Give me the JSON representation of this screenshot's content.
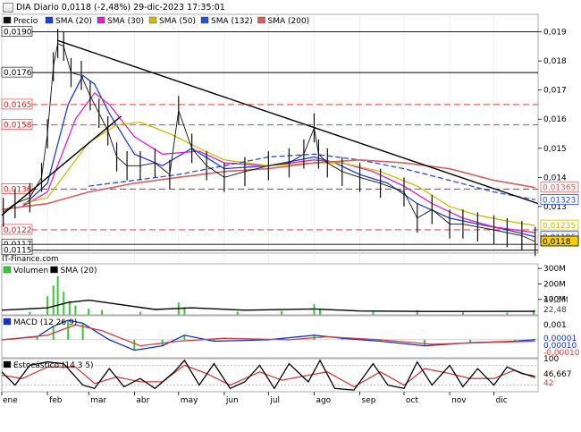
{
  "header": {
    "title": "DIA Diario 0,0118 (-2,48%) 29-dic-2023 17:35:01",
    "source": "IT-Finance.com"
  },
  "colors": {
    "price": "#111111",
    "sma20": "#1f3fd6",
    "sma30": "#e020c8",
    "sma50": "#c8c000",
    "sma132": "#2a4fd8",
    "sma200": "#d86060",
    "level_line": "#e02020",
    "trend_line": "#000000",
    "volume": "#38c838",
    "macd": "#1030d0",
    "macd_signal": "#d04040",
    "stoch_k": "#000000",
    "stoch_d": "#d04040"
  },
  "chart_data": [
    {
      "type": "line",
      "panel": "price",
      "legend": [
        "Precio",
        "SMA (20)",
        "SMA (30)",
        "SMA (50)",
        "SMA (132)",
        "SMA (200)"
      ],
      "x_months": [
        "ene",
        "feb",
        "mar",
        "abr",
        "may",
        "jun",
        "jul",
        "ago",
        "sep",
        "oct",
        "nov",
        "dic"
      ],
      "y_ticks": [
        "0,019",
        "0,018",
        "0,017",
        "0,016",
        "0,015",
        "0,014",
        "0,013"
      ],
      "ylim": [
        0.0114,
        0.0196
      ],
      "horizontal_levels": [
        {
          "value": 0.019,
          "label": "0,0190",
          "style": "solid"
        },
        {
          "value": 0.0176,
          "label": "0,0176",
          "style": "solid"
        },
        {
          "value": 0.0165,
          "label": "0,0165",
          "style": "dashed"
        },
        {
          "value": 0.0158,
          "label": "0,0158",
          "style": "dashed"
        },
        {
          "value": 0.0136,
          "label": "0,0136",
          "style": "dashed"
        },
        {
          "value": 0.0122,
          "label": "0,0122",
          "style": "dashed"
        },
        {
          "value": 0.0117,
          "label": "0,0117",
          "style": "solid"
        },
        {
          "value": 0.0115,
          "label": "0,0115",
          "style": "solid"
        }
      ],
      "right_badges": [
        {
          "label": "0,01365",
          "value": 0.01365,
          "series": "SMA (200)"
        },
        {
          "label": "0,01323",
          "value": 0.01323,
          "series": "SMA (132)"
        },
        {
          "label": "0,01235",
          "value": 0.01235,
          "series": "SMA (50)"
        },
        {
          "label": "0,01196",
          "value": 0.01196,
          "series": "SMA (20)"
        },
        {
          "label": "0,0118",
          "value": 0.0118,
          "series": "Precio"
        }
      ],
      "trendlines": [
        {
          "from": [
            "2023-01-01",
            0.0127
          ],
          "to": [
            "2023-03-23",
            0.0161
          ]
        },
        {
          "from": [
            "2023-02-08",
            0.0187
          ],
          "to": [
            "2023-12-31",
            0.0131
          ]
        }
      ],
      "series": [
        {
          "name": "Precio",
          "key": "price",
          "x": [
            "2023-01-02",
            "2023-01-10",
            "2023-01-20",
            "2023-01-28",
            "2023-02-01",
            "2023-02-05",
            "2023-02-08",
            "2023-02-12",
            "2023-02-17",
            "2023-02-24",
            "2023-03-02",
            "2023-03-08",
            "2023-03-14",
            "2023-03-20",
            "2023-03-27",
            "2023-04-05",
            "2023-04-15",
            "2023-04-25",
            "2023-05-01",
            "2023-05-10",
            "2023-05-20",
            "2023-06-01",
            "2023-06-15",
            "2023-07-01",
            "2023-07-15",
            "2023-07-25",
            "2023-08-01",
            "2023-08-04",
            "2023-08-10",
            "2023-08-20",
            "2023-09-01",
            "2023-09-15",
            "2023-10-01",
            "2023-10-10",
            "2023-10-20",
            "2023-11-01",
            "2023-11-10",
            "2023-11-20",
            "2023-12-01",
            "2023-12-10",
            "2023-12-20",
            "2023-12-29"
          ],
          "values": [
            0.0128,
            0.0131,
            0.0133,
            0.014,
            0.0155,
            0.0178,
            0.0186,
            0.0185,
            0.0176,
            0.0175,
            0.0168,
            0.0162,
            0.0156,
            0.0147,
            0.0144,
            0.0144,
            0.0145,
            0.0141,
            0.0163,
            0.015,
            0.0144,
            0.014,
            0.0142,
            0.0144,
            0.0145,
            0.0148,
            0.0157,
            0.0148,
            0.0145,
            0.0142,
            0.014,
            0.0138,
            0.0135,
            0.0126,
            0.0129,
            0.0124,
            0.0124,
            0.0123,
            0.0122,
            0.0121,
            0.012,
            0.0118
          ]
        },
        {
          "name": "SMA (20)",
          "key": "sma20",
          "x": [
            "2023-01-15",
            "2023-02-01",
            "2023-02-15",
            "2023-02-25",
            "2023-03-05",
            "2023-03-15",
            "2023-04-01",
            "2023-04-20",
            "2023-05-10",
            "2023-06-01",
            "2023-07-01",
            "2023-08-01",
            "2023-08-15",
            "2023-09-01",
            "2023-09-20",
            "2023-10-10",
            "2023-11-01",
            "2023-11-20",
            "2023-12-10",
            "2023-12-29"
          ],
          "values": [
            0.013,
            0.0138,
            0.0165,
            0.0175,
            0.0172,
            0.0162,
            0.0148,
            0.0144,
            0.015,
            0.0143,
            0.0144,
            0.0147,
            0.0145,
            0.0141,
            0.0138,
            0.0131,
            0.0126,
            0.0124,
            0.0122,
            0.01196
          ]
        },
        {
          "name": "SMA (30)",
          "key": "sma30",
          "x": [
            "2023-01-15",
            "2023-02-01",
            "2023-02-20",
            "2023-03-05",
            "2023-03-15",
            "2023-04-01",
            "2023-04-20",
            "2023-05-15",
            "2023-06-01",
            "2023-07-01",
            "2023-08-01",
            "2023-08-20",
            "2023-09-10",
            "2023-10-01",
            "2023-10-20",
            "2023-11-10",
            "2023-12-01",
            "2023-12-29"
          ],
          "values": [
            0.013,
            0.0135,
            0.016,
            0.0169,
            0.0165,
            0.0154,
            0.0148,
            0.0149,
            0.0145,
            0.0144,
            0.0146,
            0.0145,
            0.0142,
            0.0137,
            0.0131,
            0.0126,
            0.0123,
            0.0121
          ]
        },
        {
          "name": "SMA (50)",
          "key": "sma50",
          "x": [
            "2023-01-15",
            "2023-02-01",
            "2023-03-01",
            "2023-03-20",
            "2023-04-05",
            "2023-04-25",
            "2023-05-15",
            "2023-06-01",
            "2023-07-01",
            "2023-08-01",
            "2023-08-20",
            "2023-09-15",
            "2023-10-10",
            "2023-11-01",
            "2023-11-20",
            "2023-12-10",
            "2023-12-29"
          ],
          "values": [
            0.0131,
            0.0133,
            0.0152,
            0.0158,
            0.0159,
            0.0155,
            0.015,
            0.0146,
            0.0144,
            0.0145,
            0.0145,
            0.0142,
            0.0137,
            0.013,
            0.0127,
            0.0125,
            0.01235
          ]
        },
        {
          "name": "SMA (132)",
          "key": "sma132",
          "x": [
            "2023-03-01",
            "2023-04-01",
            "2023-05-01",
            "2023-06-01",
            "2023-07-01",
            "2023-08-01",
            "2023-09-01",
            "2023-10-01",
            "2023-11-01",
            "2023-12-01",
            "2023-12-29"
          ],
          "values": [
            0.0137,
            0.0139,
            0.0141,
            0.0144,
            0.0147,
            0.0148,
            0.0146,
            0.0143,
            0.0139,
            0.0135,
            0.01323
          ]
        },
        {
          "name": "SMA (200)",
          "key": "sma200",
          "x": [
            "2023-01-01",
            "2023-02-01",
            "2023-03-01",
            "2023-04-01",
            "2023-05-01",
            "2023-06-01",
            "2023-07-01",
            "2023-08-01",
            "2023-09-01",
            "2023-10-01",
            "2023-11-01",
            "2023-12-01",
            "2023-12-29"
          ],
          "values": [
            0.0129,
            0.0131,
            0.0135,
            0.0138,
            0.014,
            0.0142,
            0.0143,
            0.0145,
            0.0146,
            0.0145,
            0.0143,
            0.0139,
            0.01365
          ]
        }
      ]
    },
    {
      "type": "bar",
      "panel": "volume",
      "legend": [
        "Volumen",
        "SMA (20)"
      ],
      "y_ticks": [
        "300M",
        "200M",
        "100M"
      ],
      "ylim": [
        0,
        330
      ],
      "right_badges": [
        "47,5M",
        "22,48"
      ],
      "series": [
        {
          "name": "Volumen",
          "x": [
            "2023-01-20",
            "2023-02-01",
            "2023-02-05",
            "2023-02-08",
            "2023-02-12",
            "2023-02-16",
            "2023-02-20",
            "2023-03-01",
            "2023-03-10",
            "2023-04-05",
            "2023-05-01",
            "2023-05-05",
            "2023-06-10",
            "2023-07-10",
            "2023-08-01",
            "2023-08-05",
            "2023-09-10",
            "2023-10-10",
            "2023-11-10",
            "2023-12-10",
            "2023-12-28"
          ],
          "values": [
            20,
            120,
            190,
            250,
            150,
            90,
            60,
            40,
            30,
            20,
            80,
            50,
            20,
            25,
            70,
            40,
            20,
            30,
            20,
            15,
            30
          ]
        },
        {
          "name": "SMA (20)",
          "x": [
            "2023-01-01",
            "2023-02-01",
            "2023-02-15",
            "2023-03-01",
            "2023-03-20",
            "2023-04-15",
            "2023-05-10",
            "2023-06-15",
            "2023-08-01",
            "2023-09-01",
            "2023-10-15",
            "2023-12-29"
          ],
          "values": [
            30,
            45,
            80,
            95,
            70,
            35,
            45,
            30,
            38,
            25,
            22,
            22.48
          ]
        }
      ]
    },
    {
      "type": "line",
      "panel": "macd",
      "legend": [
        "MACD (12 26 9)"
      ],
      "y_ticks": [
        "0,001"
      ],
      "ylim": [
        -0.0012,
        0.0016
      ],
      "right_badges": [
        "0,00001",
        "0,00010",
        "-0,00010"
      ],
      "series": [
        {
          "name": "MACD",
          "x": [
            "2023-01-01",
            "2023-01-25",
            "2023-02-05",
            "2023-02-15",
            "2023-02-25",
            "2023-03-15",
            "2023-04-01",
            "2023-04-20",
            "2023-05-05",
            "2023-05-25",
            "2023-07-01",
            "2023-08-01",
            "2023-08-20",
            "2023-09-15",
            "2023-10-15",
            "2023-11-15",
            "2023-12-15",
            "2023-12-29"
          ],
          "values": [
            0.0,
            0.0002,
            0.0009,
            0.0013,
            0.0011,
            0.0,
            -0.0007,
            -0.0004,
            0.0003,
            -0.0001,
            0.0,
            0.0003,
            0.0001,
            -0.0001,
            -0.0004,
            -0.0002,
            -0.0001,
            1e-05
          ]
        },
        {
          "name": "Señal",
          "x": [
            "2023-01-01",
            "2023-02-01",
            "2023-02-20",
            "2023-03-10",
            "2023-04-05",
            "2023-05-01",
            "2023-06-01",
            "2023-07-15",
            "2023-08-10",
            "2023-09-15",
            "2023-10-20",
            "2023-11-20",
            "2023-12-29"
          ],
          "values": [
            0.0,
            0.0003,
            0.001,
            0.0006,
            -0.0004,
            -0.0001,
            0.0001,
            0.0,
            0.0002,
            0.0,
            -0.0003,
            -0.0002,
            -0.0001
          ]
        }
      ]
    },
    {
      "type": "line",
      "panel": "stochastic",
      "legend": [
        "Estocástico (14 3 5)"
      ],
      "y_ticks": [
        "100"
      ],
      "ylim": [
        0,
        100
      ],
      "right_badges": [
        "46,667",
        "42"
      ],
      "series": [
        {
          "name": "%K",
          "x": [
            "2023-01-01",
            "2023-01-10",
            "2023-01-20",
            "2023-02-01",
            "2023-02-12",
            "2023-02-25",
            "2023-03-05",
            "2023-03-15",
            "2023-03-25",
            "2023-04-05",
            "2023-04-15",
            "2023-04-28",
            "2023-05-05",
            "2023-05-15",
            "2023-05-25",
            "2023-06-05",
            "2023-06-15",
            "2023-06-25",
            "2023-07-05",
            "2023-07-15",
            "2023-07-28",
            "2023-08-05",
            "2023-08-15",
            "2023-08-28",
            "2023-09-10",
            "2023-09-20",
            "2023-10-01",
            "2023-10-10",
            "2023-10-20",
            "2023-11-01",
            "2023-11-10",
            "2023-11-20",
            "2023-12-01",
            "2023-12-10",
            "2023-12-20",
            "2023-12-29"
          ],
          "values": [
            60,
            20,
            80,
            90,
            85,
            20,
            10,
            70,
            15,
            40,
            10,
            60,
            95,
            20,
            85,
            10,
            30,
            80,
            10,
            85,
            30,
            95,
            10,
            5,
            85,
            20,
            10,
            90,
            20,
            80,
            15,
            70,
            20,
            75,
            55,
            46.667
          ]
        },
        {
          "name": "%D",
          "x": [
            "2023-01-01",
            "2023-01-15",
            "2023-02-01",
            "2023-02-20",
            "2023-03-05",
            "2023-03-20",
            "2023-04-05",
            "2023-04-20",
            "2023-05-05",
            "2023-05-20",
            "2023-06-05",
            "2023-06-25",
            "2023-07-10",
            "2023-07-28",
            "2023-08-10",
            "2023-08-28",
            "2023-09-15",
            "2023-10-01",
            "2023-10-15",
            "2023-11-01",
            "2023-11-15",
            "2023-12-01",
            "2023-12-15",
            "2023-12-29"
          ],
          "values": [
            50,
            40,
            75,
            75,
            25,
            45,
            30,
            30,
            80,
            55,
            20,
            60,
            35,
            50,
            60,
            15,
            60,
            20,
            70,
            55,
            40,
            40,
            65,
            42
          ]
        }
      ]
    }
  ]
}
